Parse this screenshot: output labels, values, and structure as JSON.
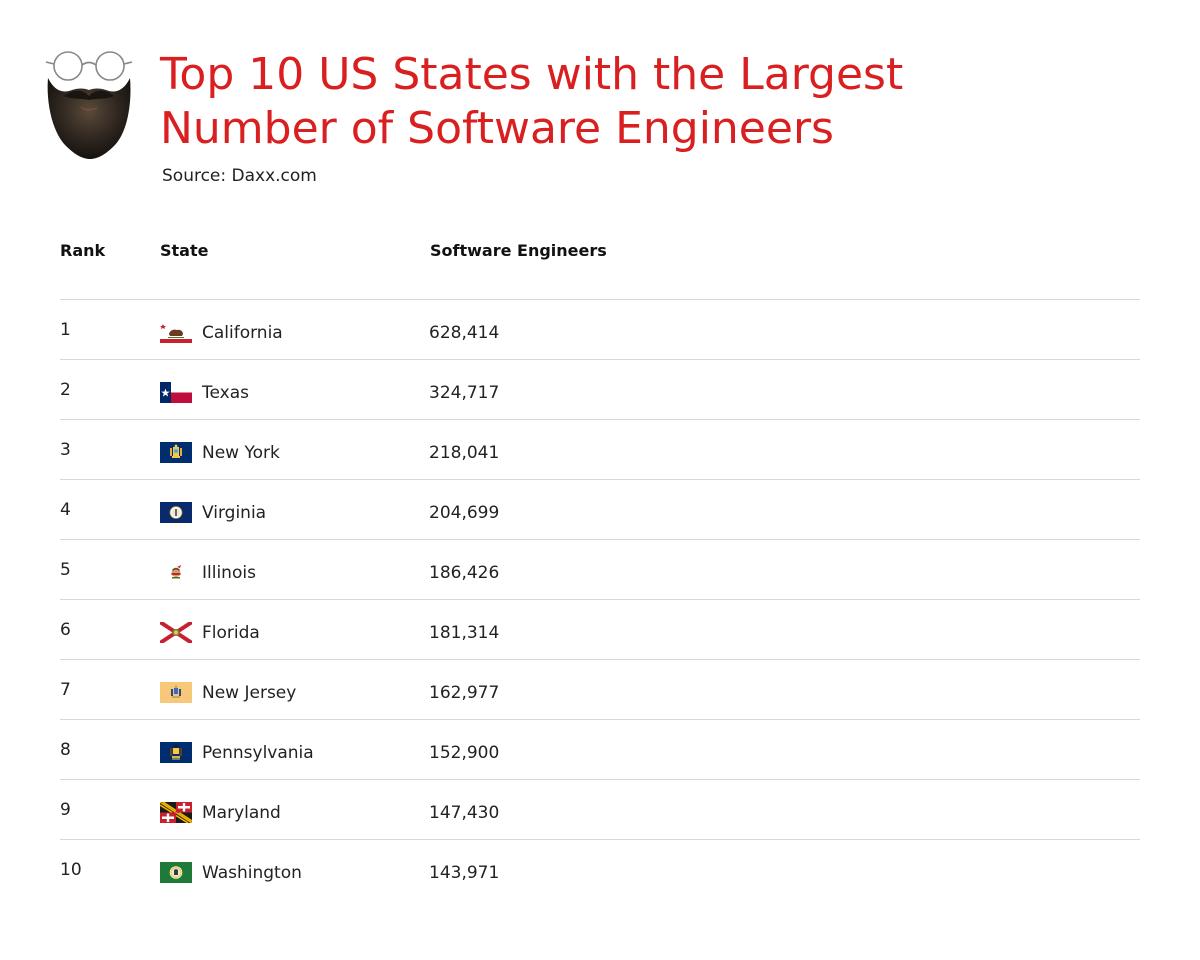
{
  "header": {
    "title_lines": [
      "Top 10 US States with the Largest",
      "Number of Software Engineers"
    ],
    "source": "Source: Daxx.com"
  },
  "colors": {
    "title": "#d91f1f",
    "divider": "#d7d7d7"
  },
  "logo": {
    "icon": "bearded-face-with-glasses-icon"
  },
  "chart_data": {
    "type": "table",
    "columns": [
      "Rank",
      "State",
      "Software Engineers"
    ],
    "rows": [
      {
        "rank": "1",
        "state": "California",
        "value": "628,414",
        "flag": "california-flag-icon"
      },
      {
        "rank": "2",
        "state": "Texas",
        "value": "324,717",
        "flag": "texas-flag-icon"
      },
      {
        "rank": "3",
        "state": "New York",
        "value": "218,041",
        "flag": "new-york-flag-icon"
      },
      {
        "rank": "4",
        "state": "Virginia",
        "value": "204,699",
        "flag": "virginia-flag-icon"
      },
      {
        "rank": "5",
        "state": "Illinois",
        "value": "186,426",
        "flag": "illinois-flag-icon"
      },
      {
        "rank": "6",
        "state": "Florida",
        "value": "181,314",
        "flag": "florida-flag-icon"
      },
      {
        "rank": "7",
        "state": "New Jersey",
        "value": "162,977",
        "flag": "new-jersey-flag-icon"
      },
      {
        "rank": "8",
        "state": "Pennsylvania",
        "value": "152,900",
        "flag": "pennsylvania-flag-icon"
      },
      {
        "rank": "9",
        "state": "Maryland",
        "value": "147,430",
        "flag": "maryland-flag-icon"
      },
      {
        "rank": "10",
        "state": "Washington",
        "value": "143,971",
        "flag": "washington-flag-icon"
      }
    ]
  }
}
